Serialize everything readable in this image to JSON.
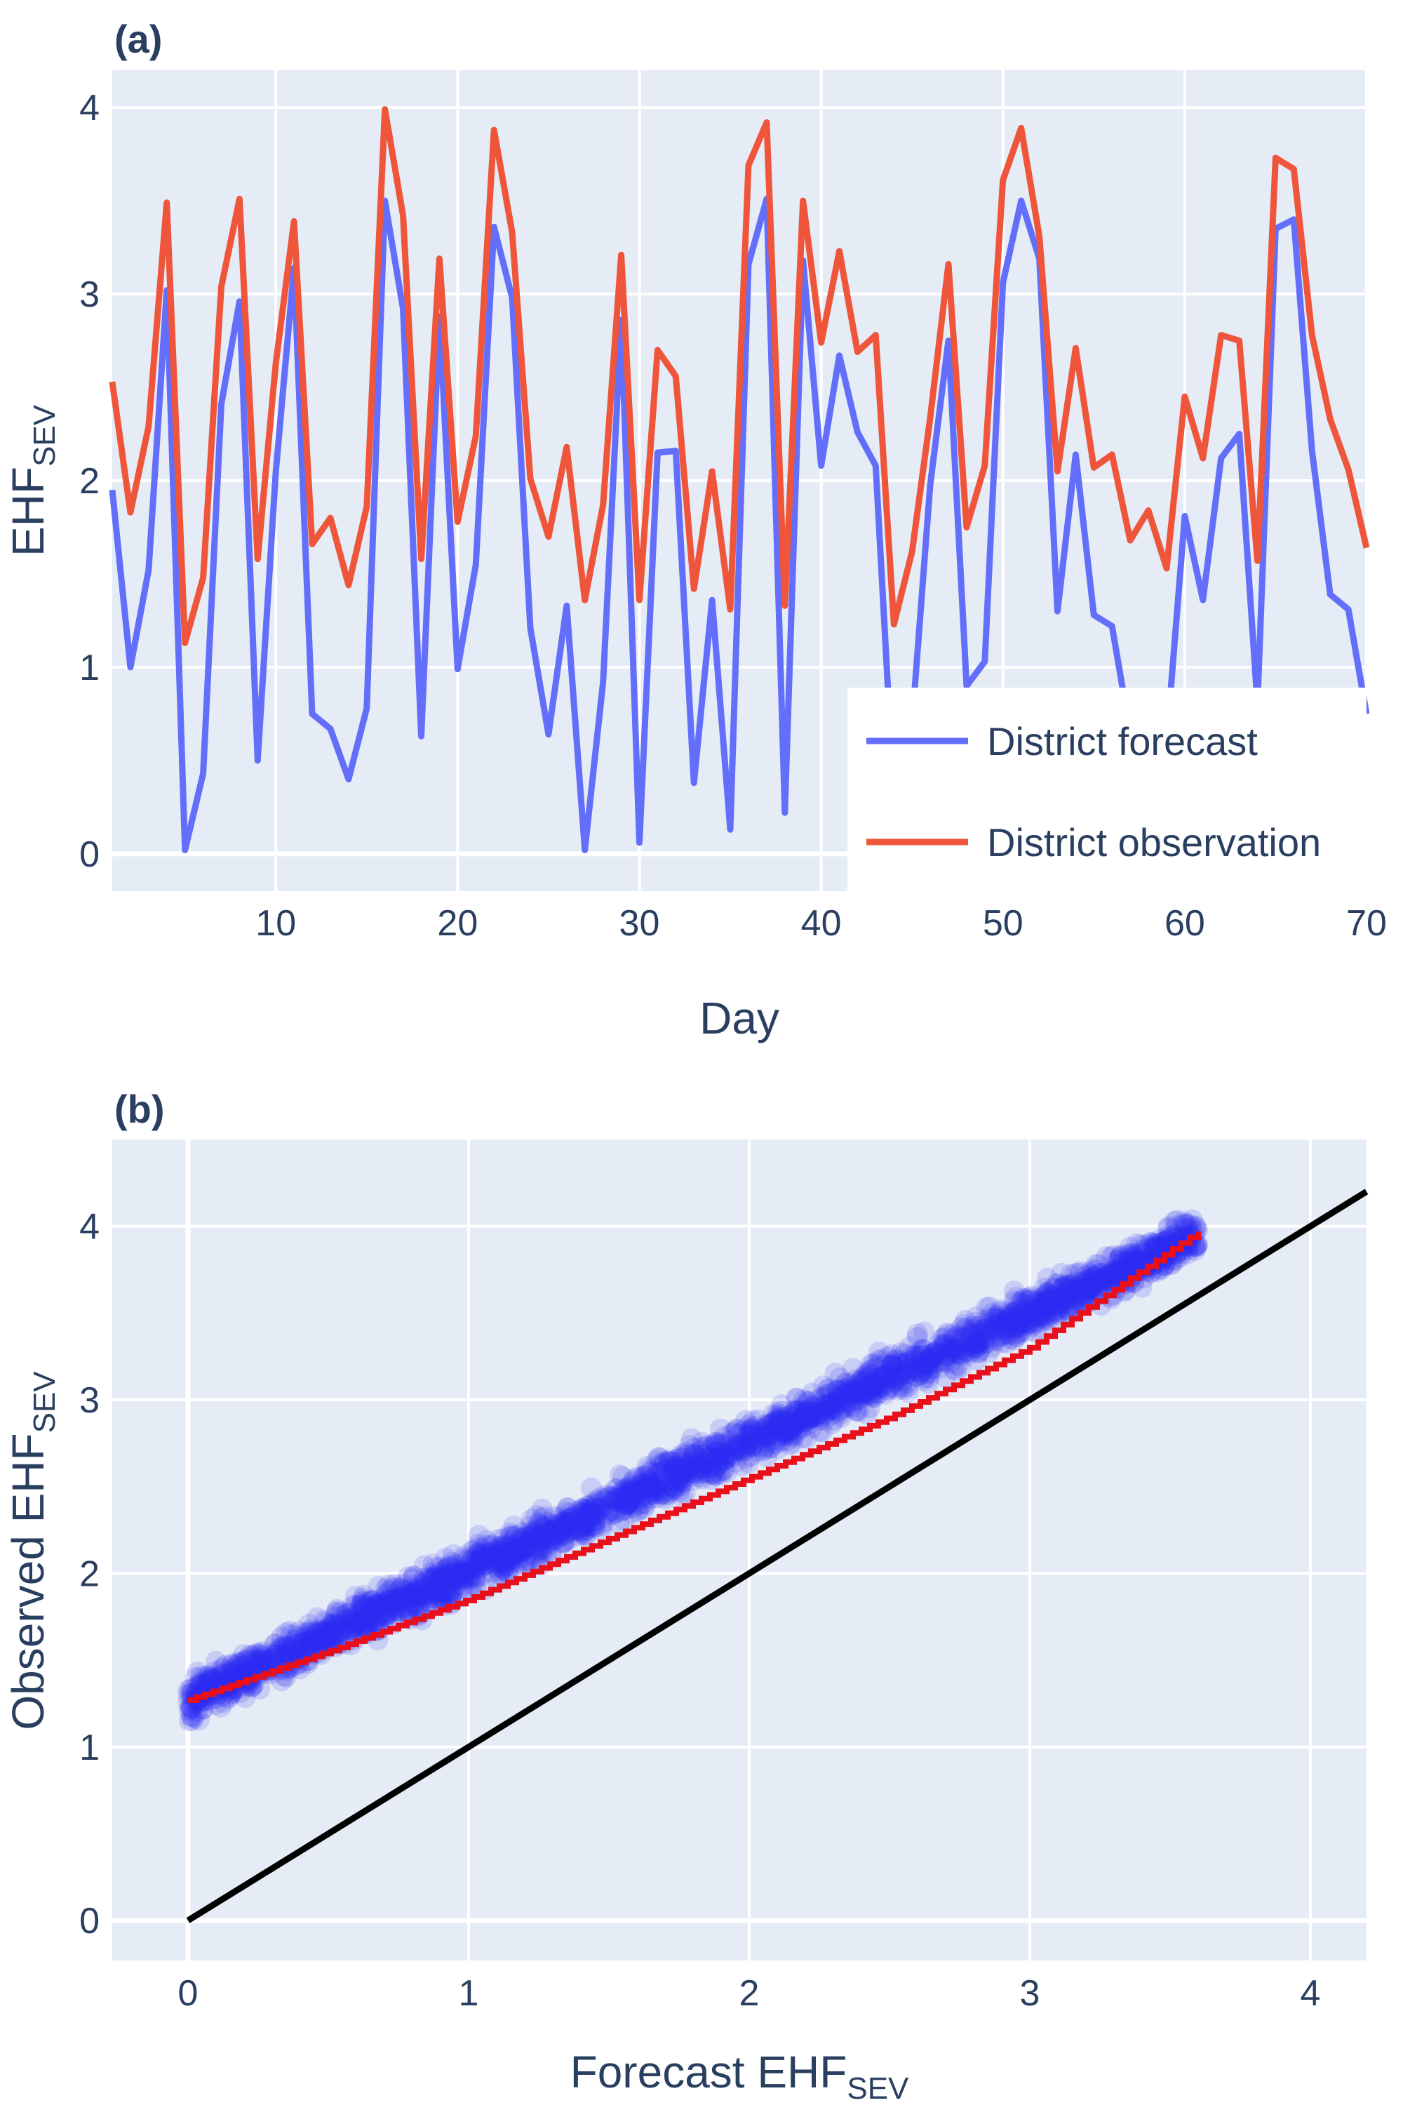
{
  "chart_data": [
    {
      "panel": "(a)",
      "type": "line",
      "xlabel": "Day",
      "ylabel": {
        "main": "EHF",
        "sub": "SEV"
      },
      "xlim": [
        1,
        70
      ],
      "ylim": [
        -0.2,
        4.2
      ],
      "xticks": [
        10,
        20,
        30,
        40,
        50,
        60,
        70
      ],
      "yticks": [
        0,
        1,
        2,
        3,
        4
      ],
      "grid": true,
      "legend_position": "bottom-right",
      "x": [
        1,
        2,
        3,
        4,
        5,
        6,
        7,
        8,
        9,
        10,
        11,
        12,
        13,
        14,
        15,
        16,
        17,
        18,
        19,
        20,
        21,
        22,
        23,
        24,
        25,
        26,
        27,
        28,
        29,
        30,
        31,
        32,
        33,
        34,
        35,
        36,
        37,
        38,
        39,
        40,
        41,
        42,
        43,
        44,
        45,
        46,
        47,
        48,
        49,
        50,
        51,
        52,
        53,
        54,
        55,
        56,
        57,
        58,
        59,
        60,
        61,
        62,
        63,
        64,
        65,
        66,
        67,
        68,
        69,
        70
      ],
      "series": [
        {
          "name": "District forecast",
          "color": "#636efa",
          "values": [
            1.95,
            1.0,
            1.52,
            3.02,
            0.02,
            0.43,
            2.41,
            2.96,
            0.5,
            2.05,
            3.14,
            0.75,
            0.67,
            0.4,
            0.78,
            3.5,
            2.92,
            0.63,
            2.88,
            0.99,
            1.55,
            3.36,
            2.98,
            1.21,
            0.64,
            1.33,
            0.02,
            0.92,
            2.86,
            0.06,
            2.15,
            2.16,
            0.38,
            1.36,
            0.13,
            3.16,
            3.51,
            0.22,
            3.18,
            2.08,
            2.67,
            2.26,
            2.08,
            0.3,
            0.7,
            1.98,
            2.75,
            0.9,
            1.03,
            3.06,
            3.5,
            3.19,
            1.3,
            2.14,
            1.28,
            1.22,
            0.65,
            0.55,
            0.6,
            1.81,
            1.36,
            2.12,
            2.25,
            0.8,
            3.35,
            3.4,
            2.16,
            1.39,
            1.31,
            0.75
          ]
        },
        {
          "name": "District observation",
          "color": "#ef553b",
          "values": [
            2.53,
            1.83,
            2.29,
            3.49,
            1.13,
            1.48,
            3.04,
            3.51,
            1.58,
            2.63,
            3.39,
            1.66,
            1.8,
            1.44,
            1.86,
            3.99,
            3.42,
            1.58,
            3.19,
            1.78,
            2.24,
            3.88,
            3.33,
            2.01,
            1.7,
            2.18,
            1.36,
            1.87,
            3.21,
            1.36,
            2.7,
            2.56,
            1.42,
            2.05,
            1.31,
            3.69,
            3.92,
            1.33,
            3.5,
            2.74,
            3.23,
            2.69,
            2.78,
            1.23,
            1.62,
            2.34,
            3.16,
            1.75,
            2.08,
            3.61,
            3.89,
            3.31,
            2.05,
            2.71,
            2.07,
            2.14,
            1.68,
            1.84,
            1.53,
            2.45,
            2.12,
            2.78,
            2.75,
            1.57,
            3.73,
            3.67,
            2.78,
            2.33,
            2.06,
            1.64
          ]
        }
      ]
    },
    {
      "panel": "(b)",
      "type": "scatter",
      "xlabel": {
        "main": "Forecast EHF",
        "sub": "SEV"
      },
      "ylabel": {
        "main": "Observed EHF",
        "sub": "SEV"
      },
      "xlim": [
        -0.27,
        4.2
      ],
      "ylim": [
        -0.23,
        4.5
      ],
      "xticks": [
        0,
        1,
        2,
        3,
        4
      ],
      "yticks": [
        0,
        1,
        2,
        3,
        4
      ],
      "grid": true,
      "point_color": "#2a2af0",
      "fit_color": "#e8101a",
      "identity_color": "#000000",
      "point_cloud": {
        "x_range": [
          0,
          3.6
        ],
        "intercept": 1.27,
        "slope": 0.745,
        "spread": 0.1
      },
      "fit_line": {
        "x": [
          0,
          0.5,
          1,
          1.5,
          2,
          2.5,
          3,
          3.6
        ],
        "y": [
          1.27,
          1.55,
          1.85,
          2.2,
          2.55,
          2.9,
          3.3,
          3.97
        ]
      },
      "identity_line": {
        "x": [
          0,
          4.2
        ],
        "y": [
          0,
          4.2
        ]
      }
    }
  ]
}
